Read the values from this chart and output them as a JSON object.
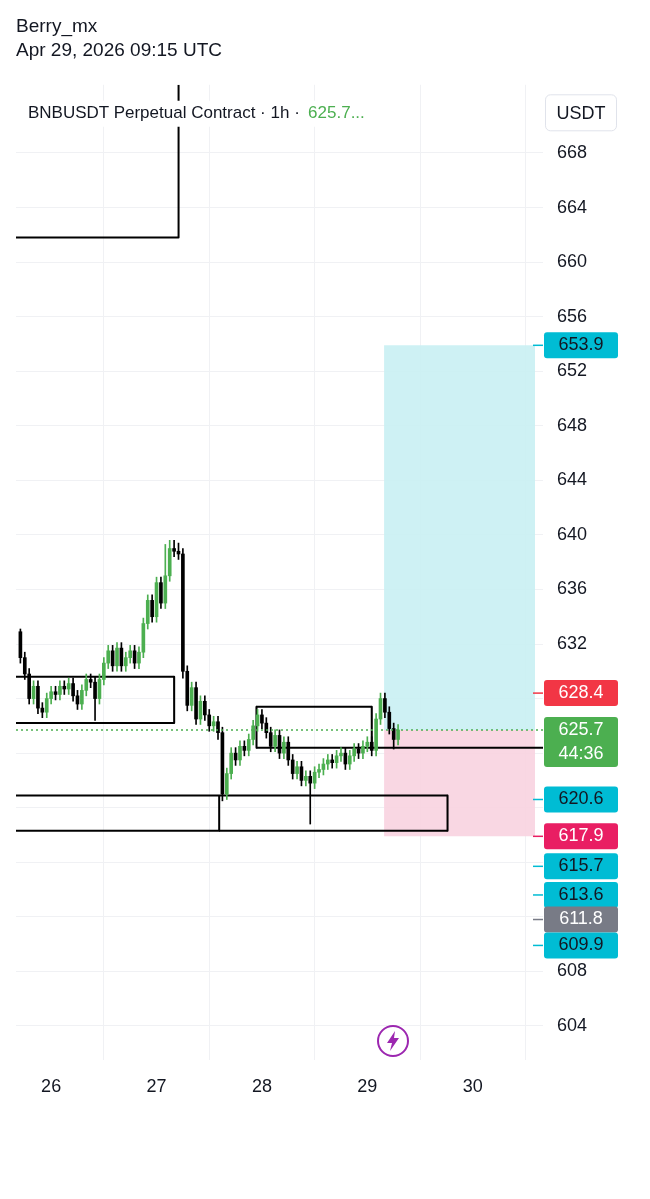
{
  "chart_data": {
    "type": "candlestick",
    "title": "BNBUSDT Perpetual Contract · 1h ·",
    "ylabel": "USDT",
    "annotations": [
      "Berry_mx",
      "Apr 29, 2026 09:15 UTC",
      "625.7..."
    ],
    "x": [
      "2026-04-25T17:00",
      "2026-04-25T18:00",
      "2026-04-25T19:00",
      "2026-04-25T20:00",
      "2026-04-25T21:00",
      "2026-04-25T22:00",
      "2026-04-25T23:00",
      "2026-04-26T00:00",
      "2026-04-26T01:00",
      "2026-04-26T02:00",
      "2026-04-26T03:00",
      "2026-04-26T04:00",
      "2026-04-26T05:00",
      "2026-04-26T06:00",
      "2026-04-26T07:00",
      "2026-04-26T08:00",
      "2026-04-26T09:00",
      "2026-04-26T10:00",
      "2026-04-26T11:00",
      "2026-04-26T12:00",
      "2026-04-26T13:00",
      "2026-04-26T14:00",
      "2026-04-26T15:00",
      "2026-04-26T16:00",
      "2026-04-26T17:00",
      "2026-04-26T18:00",
      "2026-04-26T19:00",
      "2026-04-26T20:00",
      "2026-04-26T21:00",
      "2026-04-26T22:00",
      "2026-04-26T23:00",
      "2026-04-27T00:00",
      "2026-04-27T01:00",
      "2026-04-27T02:00",
      "2026-04-27T03:00",
      "2026-04-27T04:00",
      "2026-04-27T05:00",
      "2026-04-27T06:00",
      "2026-04-27T07:00",
      "2026-04-27T08:00",
      "2026-04-27T09:00",
      "2026-04-27T10:00",
      "2026-04-27T11:00",
      "2026-04-27T12:00",
      "2026-04-27T13:00",
      "2026-04-27T14:00",
      "2026-04-27T15:00",
      "2026-04-27T16:00",
      "2026-04-27T17:00",
      "2026-04-27T18:00",
      "2026-04-27T19:00",
      "2026-04-27T20:00",
      "2026-04-27T21:00",
      "2026-04-27T22:00",
      "2026-04-27T23:00",
      "2026-04-28T00:00",
      "2026-04-28T01:00",
      "2026-04-28T02:00",
      "2026-04-28T03:00",
      "2026-04-28T04:00",
      "2026-04-28T05:00",
      "2026-04-28T06:00",
      "2026-04-28T07:00",
      "2026-04-28T08:00",
      "2026-04-28T09:00",
      "2026-04-28T10:00",
      "2026-04-28T11:00",
      "2026-04-28T12:00",
      "2026-04-28T13:00",
      "2026-04-28T14:00",
      "2026-04-28T15:00",
      "2026-04-28T16:00",
      "2026-04-28T17:00",
      "2026-04-28T18:00",
      "2026-04-28T19:00",
      "2026-04-28T20:00",
      "2026-04-28T21:00",
      "2026-04-28T22:00",
      "2026-04-28T23:00",
      "2026-04-29T00:00",
      "2026-04-29T01:00",
      "2026-04-29T02:00",
      "2026-04-29T03:00",
      "2026-04-29T04:00",
      "2026-04-29T05:00",
      "2026-04-29T06:00",
      "2026-04-29T07:00"
    ],
    "ohlc": [
      [
        632.9,
        633.1,
        630.6,
        631.0
      ],
      [
        631.0,
        631.4,
        629.4,
        629.8
      ],
      [
        629.8,
        630.2,
        627.6,
        628.0
      ],
      [
        628.0,
        629.3,
        627.6,
        628.9
      ],
      [
        628.9,
        629.3,
        626.9,
        627.3
      ],
      [
        627.3,
        627.7,
        626.6,
        627.0
      ],
      [
        627.0,
        628.4,
        626.6,
        628.0
      ],
      [
        628.0,
        628.9,
        627.6,
        628.5
      ],
      [
        628.5,
        628.9,
        627.9,
        628.3
      ],
      [
        628.3,
        629.3,
        627.9,
        628.9
      ],
      [
        628.9,
        629.3,
        628.3,
        628.7
      ],
      [
        628.7,
        629.5,
        628.3,
        629.1
      ],
      [
        629.1,
        629.5,
        627.8,
        628.2
      ],
      [
        628.2,
        628.6,
        627.2,
        627.6
      ],
      [
        627.6,
        629.0,
        627.2,
        628.6
      ],
      [
        628.6,
        629.8,
        628.2,
        629.4
      ],
      [
        629.4,
        629.8,
        628.8,
        629.2
      ],
      [
        629.2,
        629.6,
        626.4,
        628.0
      ],
      [
        628.0,
        629.8,
        627.6,
        629.4
      ],
      [
        629.4,
        631.0,
        629.0,
        630.6
      ],
      [
        630.6,
        631.9,
        630.2,
        631.5
      ],
      [
        631.5,
        631.9,
        630.0,
        630.4
      ],
      [
        630.4,
        632.1,
        630.0,
        631.7
      ],
      [
        631.7,
        632.1,
        630.0,
        630.4
      ],
      [
        630.4,
        631.4,
        630.0,
        631.0
      ],
      [
        631.0,
        631.9,
        630.6,
        631.5
      ],
      [
        631.5,
        631.9,
        630.2,
        630.6
      ],
      [
        630.6,
        631.8,
        630.2,
        631.4
      ],
      [
        631.4,
        633.9,
        631.0,
        633.5
      ],
      [
        633.5,
        635.6,
        633.1,
        635.2
      ],
      [
        635.2,
        635.6,
        633.6,
        634.0
      ],
      [
        634.0,
        636.9,
        633.6,
        636.5
      ],
      [
        636.5,
        636.9,
        634.6,
        635.0
      ],
      [
        635.0,
        639.3,
        634.6,
        637.0
      ],
      [
        637.0,
        639.6,
        636.6,
        639.0
      ],
      [
        639.0,
        639.6,
        638.4,
        638.8
      ],
      [
        638.8,
        639.4,
        638.2,
        638.6
      ],
      [
        638.6,
        639.0,
        629.5,
        630.0
      ],
      [
        630.0,
        630.4,
        627.1,
        627.5
      ],
      [
        627.5,
        629.2,
        627.1,
        628.8
      ],
      [
        628.8,
        629.2,
        626.1,
        626.5
      ],
      [
        626.5,
        628.2,
        626.1,
        627.8
      ],
      [
        627.8,
        628.2,
        626.4,
        626.8
      ],
      [
        626.8,
        627.2,
        625.6,
        626.0
      ],
      [
        626.0,
        626.7,
        625.6,
        626.3
      ],
      [
        626.3,
        626.7,
        625.0,
        625.5
      ],
      [
        625.5,
        625.9,
        620.5,
        621.0
      ],
      [
        621.0,
        622.9,
        620.6,
        622.5
      ],
      [
        622.5,
        624.4,
        622.1,
        624.0
      ],
      [
        624.0,
        624.4,
        623.1,
        623.5
      ],
      [
        623.5,
        624.9,
        623.1,
        624.5
      ],
      [
        624.5,
        624.9,
        623.8,
        624.2
      ],
      [
        624.2,
        625.4,
        623.8,
        625.0
      ],
      [
        625.0,
        626.4,
        624.6,
        626.0
      ],
      [
        626.0,
        627.2,
        625.6,
        626.8
      ],
      [
        626.8,
        627.2,
        625.8,
        626.2
      ],
      [
        626.2,
        626.6,
        625.1,
        625.5
      ],
      [
        625.5,
        625.9,
        624.1,
        624.5
      ],
      [
        624.5,
        625.7,
        624.1,
        625.3
      ],
      [
        625.3,
        625.7,
        623.6,
        624.0
      ],
      [
        624.0,
        625.2,
        623.6,
        624.8
      ],
      [
        624.8,
        625.2,
        623.1,
        623.5
      ],
      [
        623.5,
        623.9,
        622.1,
        622.5
      ],
      [
        622.5,
        623.4,
        622.1,
        623.0
      ],
      [
        623.0,
        623.4,
        621.6,
        622.0
      ],
      [
        622.0,
        622.7,
        621.6,
        622.3
      ],
      [
        622.3,
        622.7,
        618.8,
        621.8
      ],
      [
        621.8,
        623.0,
        621.4,
        622.6
      ],
      [
        622.6,
        623.2,
        622.2,
        622.8
      ],
      [
        622.8,
        623.6,
        622.4,
        623.2
      ],
      [
        623.2,
        623.9,
        622.8,
        623.5
      ],
      [
        623.5,
        623.9,
        622.9,
        623.3
      ],
      [
        623.3,
        624.2,
        622.9,
        623.8
      ],
      [
        623.8,
        624.4,
        623.4,
        624.0
      ],
      [
        624.0,
        624.4,
        622.8,
        623.2
      ],
      [
        623.2,
        624.2,
        622.8,
        623.8
      ],
      [
        623.8,
        624.7,
        623.4,
        624.3
      ],
      [
        624.3,
        624.7,
        623.6,
        624.0
      ],
      [
        624.0,
        624.9,
        623.6,
        624.5
      ],
      [
        624.5,
        625.2,
        624.1,
        624.8
      ],
      [
        624.8,
        625.2,
        623.8,
        624.2
      ],
      [
        624.2,
        626.9,
        623.8,
        626.5
      ],
      [
        626.5,
        628.4,
        626.1,
        628.0
      ],
      [
        628.0,
        628.4,
        626.6,
        627.0
      ],
      [
        627.0,
        627.4,
        625.4,
        625.8
      ],
      [
        625.8,
        626.2,
        624.3,
        625.0
      ],
      [
        625.0,
        626.1,
        624.6,
        625.7
      ]
    ],
    "colors": [
      "#000000",
      "#000000",
      "#000000",
      "#4caf50",
      "#000000",
      "#000000",
      "#4caf50",
      "#4caf50",
      "#000000",
      "#4caf50",
      "#000000",
      "#4caf50",
      "#000000",
      "#000000",
      "#4caf50",
      "#4caf50",
      "#000000",
      "#000000",
      "#4caf50",
      "#4caf50",
      "#4caf50",
      "#000000",
      "#4caf50",
      "#000000",
      "#4caf50",
      "#4caf50",
      "#000000",
      "#4caf50",
      "#4caf50",
      "#4caf50",
      "#000000",
      "#4caf50",
      "#000000",
      "#4caf50",
      "#4caf50",
      "#000000",
      "#000000",
      "#000000",
      "#000000",
      "#4caf50",
      "#000000",
      "#4caf50",
      "#000000",
      "#000000",
      "#4caf50",
      "#000000",
      "#000000",
      "#4caf50",
      "#4caf50",
      "#000000",
      "#4caf50",
      "#000000",
      "#4caf50",
      "#4caf50",
      "#4caf50",
      "#000000",
      "#000000",
      "#000000",
      "#4caf50",
      "#000000",
      "#4caf50",
      "#000000",
      "#000000",
      "#4caf50",
      "#000000",
      "#4caf50",
      "#000000",
      "#4caf50",
      "#4caf50",
      "#4caf50",
      "#4caf50",
      "#000000",
      "#4caf50",
      "#4caf50",
      "#000000",
      "#4caf50",
      "#4caf50",
      "#000000",
      "#4caf50",
      "#4caf50",
      "#000000",
      "#4caf50",
      "#4caf50",
      "#000000",
      "#000000",
      "#000000",
      "#4caf50"
    ],
    "xlim": [
      "2026-04-25T16:00",
      "2026-04-30T16:00"
    ],
    "xticks": [
      {
        "value": "2026-04-26",
        "label": "26"
      },
      {
        "value": "2026-04-27",
        "label": "27"
      },
      {
        "value": "2026-04-28",
        "label": "28"
      },
      {
        "value": "2026-04-29",
        "label": "29"
      },
      {
        "value": "2026-04-30",
        "label": "30"
      }
    ],
    "ylim": [
      601.5,
      673
    ],
    "yticks": [
      604,
      608,
      {
        "value": 612,
        "label": null
      },
      {
        "value": 616,
        "label": null
      },
      {
        "value": 620,
        "label": null
      },
      {
        "value": 624,
        "label": null
      },
      {
        "value": 628,
        "label": null
      },
      632,
      636,
      640,
      644,
      648,
      652,
      656,
      660,
      664,
      668
    ],
    "grid": true,
    "marker": "none",
    "series": [
      {
        "type": "line",
        "color": "#000000",
        "x": [
          "2026-04-25T16:00",
          "2026-04-27T05:00",
          "2026-04-27T05:01"
        ],
        "values": [
          661.8,
          661.8,
          673
        ]
      },
      {
        "type": "line",
        "color": "#000000",
        "x": [
          "2026-04-25T16:00",
          "2026-04-27T04:00"
        ],
        "values": [
          629.6,
          629.6
        ]
      },
      {
        "type": "line",
        "color": "#000000",
        "x": [
          "2026-04-25T16:00",
          "2026-04-27T04:00"
        ],
        "values": [
          626.2,
          626.2
        ]
      },
      {
        "type": "line",
        "color": "#000000",
        "x": [
          "2026-04-27T04:00",
          "2026-04-27T04:01"
        ],
        "values": [
          629.6,
          626.2
        ]
      },
      {
        "type": "line",
        "color": "#000000",
        "x": [
          "2026-04-27T22:45",
          "2026-04-29T01:00"
        ],
        "values": [
          627.4,
          627.4
        ]
      },
      {
        "type": "line",
        "color": "#000000",
        "x": [
          "2026-04-27T22:45",
          "2026-04-30T16:00"
        ],
        "values": [
          624.4,
          624.4
        ]
      },
      {
        "type": "line",
        "color": "#000000",
        "x": [
          "2026-04-27T22:45",
          "2026-04-27T22:46"
        ],
        "values": [
          627.4,
          624.4
        ]
      },
      {
        "type": "line",
        "color": "#000000",
        "x": [
          "2026-04-29T01:00",
          "2026-04-29T01:01"
        ],
        "values": [
          627.4,
          624.4
        ]
      },
      {
        "type": "line",
        "color": "#000000",
        "x": [
          "2026-04-25T16:00",
          "2026-04-29T18:15"
        ],
        "values": [
          620.9,
          620.9
        ]
      },
      {
        "type": "line",
        "color": "#000000",
        "x": [
          "2026-04-25T16:00",
          "2026-04-29T18:15"
        ],
        "values": [
          618.3,
          618.3
        ]
      },
      {
        "type": "line",
        "color": "#000000",
        "x": [
          "2026-04-29T18:15",
          "2026-04-29T18:16"
        ],
        "values": [
          620.9,
          618.3
        ]
      },
      {
        "type": "line",
        "color": "#000000",
        "x": [
          "2026-04-27T14:15",
          "2026-04-27T14:16"
        ],
        "values": [
          618.3,
          620.9
        ]
      }
    ],
    "bands": [
      {
        "axis": "y",
        "from": 625.7,
        "to": 653.9,
        "color": "#c9eff3"
      },
      {
        "axis": "y",
        "from": 617.9,
        "to": 625.7,
        "color": "#f8d3e0"
      }
    ],
    "ref_lines": [
      {
        "axis": "y",
        "value": 653.9,
        "label": "653.9",
        "color": "#00bcd4"
      },
      {
        "axis": "y",
        "value": 628.4,
        "label": "628.4",
        "color": "#f23645"
      },
      {
        "axis": "y",
        "value": 625.7,
        "label": "625.7\n44:36",
        "color": "#4caf50",
        "line_style": "dotted"
      },
      {
        "axis": "y",
        "value": 620.6,
        "label": "620.6",
        "color": "#00bcd4"
      },
      {
        "axis": "y",
        "value": 617.9,
        "label": "617.9",
        "color": "#e91e63"
      },
      {
        "axis": "y",
        "value": 615.7,
        "label": "615.7",
        "color": "#00bcd4"
      },
      {
        "axis": "y",
        "value": 613.6,
        "label": "613.6",
        "color": "#00bcd4"
      },
      {
        "axis": "y",
        "value": 611.8,
        "label": "611.8",
        "color": "#787b86"
      },
      {
        "axis": "y",
        "value": 609.9,
        "label": "609.9",
        "color": "#00bcd4"
      }
    ]
  }
}
